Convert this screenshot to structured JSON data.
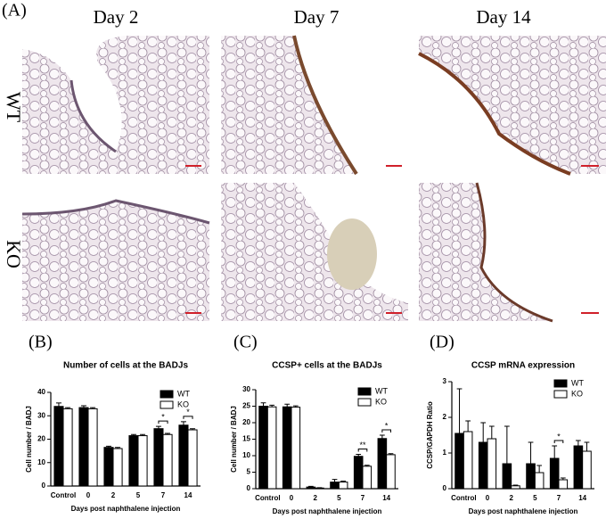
{
  "figure": {
    "panel_a": "(A)",
    "columns": [
      "Day 2",
      "Day 7",
      "Day 14"
    ],
    "rows": [
      "WT",
      "KO"
    ],
    "panels": [
      "(B)",
      "(C)",
      "(D)"
    ]
  },
  "chart_data": [
    {
      "type": "bar",
      "title": "Number of cells at the BADJs",
      "y_label": "Cell number / BADJ",
      "x_label": "Days post naphthalene injection",
      "categories": [
        "Control",
        "0",
        "2",
        "5",
        "7",
        "14"
      ],
      "series": [
        {
          "name": "WT",
          "color": "#000000",
          "values": [
            34,
            33.5,
            16.5,
            21.5,
            24.5,
            26
          ],
          "errors": [
            1.5,
            0.8,
            0.5,
            0.5,
            1,
            1.5
          ]
        },
        {
          "name": "KO",
          "color": "#ffffff",
          "values": [
            33,
            33,
            16,
            21.5,
            22,
            24
          ],
          "errors": [
            0.5,
            0.5,
            0.5,
            0.5,
            0.5,
            0.5
          ]
        }
      ],
      "ylim": [
        0,
        40
      ],
      "yticks": [
        0,
        10,
        20,
        30,
        40
      ],
      "legend": "upper right",
      "annotations": [
        {
          "label": "*",
          "category": "7"
        },
        {
          "label": "*",
          "category": "14"
        }
      ]
    },
    {
      "type": "bar",
      "title": "CCSP+ cells at the BADJs",
      "y_label": "Cell number / BADJ",
      "x_label": "Days post naphthalene injection",
      "categories": [
        "Control",
        "0",
        "2",
        "5",
        "7",
        "14"
      ],
      "series": [
        {
          "name": "WT",
          "color": "#000000",
          "values": [
            25,
            24.8,
            0.5,
            2,
            9.8,
            15.2
          ],
          "errors": [
            1,
            0.8,
            0.2,
            0.8,
            0.6,
            1
          ]
        },
        {
          "name": "KO",
          "color": "#ffffff",
          "values": [
            24.8,
            24.7,
            0.2,
            2,
            6.8,
            10.3
          ],
          "errors": [
            0.5,
            0.4,
            0.1,
            0.3,
            0.3,
            0.3
          ]
        }
      ],
      "ylim": [
        0,
        30
      ],
      "yticks": [
        0,
        5,
        10,
        15,
        20,
        25,
        30
      ],
      "legend": "upper right",
      "annotations": [
        {
          "label": "**",
          "category": "7"
        },
        {
          "label": "*",
          "category": "14"
        }
      ]
    },
    {
      "type": "bar",
      "title": "CCSP mRNA expression",
      "y_label": "CCSP/GAPDH Ratio",
      "x_label": "Days post naphthalene injection",
      "categories": [
        "Control",
        "0",
        "2",
        "5",
        "7",
        "14"
      ],
      "series": [
        {
          "name": "WT",
          "color": "#000000",
          "values": [
            1.55,
            1.3,
            0.7,
            0.7,
            0.85,
            1.2
          ],
          "errors": [
            1.25,
            0.55,
            1.05,
            0.6,
            0.35,
            0.15
          ]
        },
        {
          "name": "KO",
          "color": "#ffffff",
          "values": [
            1.6,
            1.4,
            0.08,
            0.45,
            0.25,
            1.05
          ],
          "errors": [
            0.3,
            0.35,
            0.02,
            0.2,
            0.05,
            0.25
          ]
        }
      ],
      "ylim": [
        0,
        3
      ],
      "yticks": [
        0,
        1,
        2,
        3
      ],
      "legend": "upper right",
      "annotations": [
        {
          "label": "*",
          "category": "7"
        }
      ]
    }
  ]
}
